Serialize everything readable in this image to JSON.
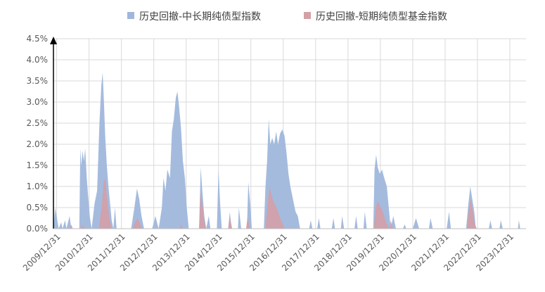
{
  "chart_data": {
    "type": "area",
    "title": "",
    "xlabel": "",
    "ylabel": "",
    "ylim": [
      0,
      4.5
    ],
    "yticks": [
      "0.0%",
      "0.5%",
      "1.0%",
      "1.5%",
      "2.0%",
      "2.5%",
      "3.0%",
      "3.5%",
      "4.0%",
      "4.5%"
    ],
    "xticks": [
      "2009/12/31",
      "2010/12/31",
      "2011/12/31",
      "2012/12/31",
      "2013/12/31",
      "2014/12/31",
      "2015/12/31",
      "2016/12/31",
      "2017/12/31",
      "2018/12/31",
      "2019/12/31",
      "2020/12/31",
      "2021/12/31",
      "2022/12/31",
      "2023/12/31"
    ],
    "x_range": [
      2009.9,
      2024.5
    ],
    "grid": "vertical-and-horizontal",
    "legend_position": "top",
    "series": [
      {
        "name": "历史回撤-中长期纯债型指数",
        "color": "#9fb7dc",
        "points": [
          [
            2009.9,
            0.0
          ],
          [
            2009.95,
            0.5
          ],
          [
            2010.02,
            0.2
          ],
          [
            2010.06,
            0.0
          ],
          [
            2010.14,
            0.15
          ],
          [
            2010.18,
            0.0
          ],
          [
            2010.26,
            0.2
          ],
          [
            2010.3,
            0.0
          ],
          [
            2010.4,
            0.3
          ],
          [
            2010.45,
            0.0
          ],
          [
            2010.7,
            0.0
          ],
          [
            2010.73,
            1.9
          ],
          [
            2010.76,
            1.5
          ],
          [
            2010.8,
            1.85
          ],
          [
            2010.84,
            1.6
          ],
          [
            2010.88,
            1.9
          ],
          [
            2010.93,
            1.2
          ],
          [
            2010.97,
            0.8
          ],
          [
            2011.02,
            0.3
          ],
          [
            2011.08,
            0.0
          ],
          [
            2011.17,
            0.6
          ],
          [
            2011.25,
            0.9
          ],
          [
            2011.32,
            2.5
          ],
          [
            2011.38,
            3.4
          ],
          [
            2011.42,
            3.7
          ],
          [
            2011.46,
            3.0
          ],
          [
            2011.5,
            2.2
          ],
          [
            2011.55,
            1.5
          ],
          [
            2011.6,
            1.0
          ],
          [
            2011.65,
            0.6
          ],
          [
            2011.7,
            0.2
          ],
          [
            2011.75,
            0.0
          ],
          [
            2011.8,
            0.5
          ],
          [
            2011.85,
            0.0
          ],
          [
            2012.3,
            0.0
          ],
          [
            2012.4,
            0.5
          ],
          [
            2012.48,
            0.95
          ],
          [
            2012.55,
            0.7
          ],
          [
            2012.62,
            0.3
          ],
          [
            2012.7,
            0.0
          ],
          [
            2012.95,
            0.0
          ],
          [
            2013.05,
            0.3
          ],
          [
            2013.15,
            0.0
          ],
          [
            2013.25,
            0.5
          ],
          [
            2013.3,
            1.2
          ],
          [
            2013.36,
            0.9
          ],
          [
            2013.42,
            1.4
          ],
          [
            2013.5,
            1.2
          ],
          [
            2013.56,
            2.3
          ],
          [
            2013.62,
            2.6
          ],
          [
            2013.68,
            3.1
          ],
          [
            2013.73,
            3.25
          ],
          [
            2013.78,
            2.9
          ],
          [
            2013.84,
            2.4
          ],
          [
            2013.9,
            1.6
          ],
          [
            2013.96,
            1.2
          ],
          [
            2014.02,
            0.5
          ],
          [
            2014.08,
            0.0
          ],
          [
            2014.4,
            0.0
          ],
          [
            2014.45,
            1.45
          ],
          [
            2014.5,
            0.9
          ],
          [
            2014.56,
            0.3
          ],
          [
            2014.62,
            0.0
          ],
          [
            2014.7,
            0.3
          ],
          [
            2014.75,
            0.0
          ],
          [
            2014.95,
            0.0
          ],
          [
            2015.0,
            1.4
          ],
          [
            2015.05,
            0.6
          ],
          [
            2015.1,
            0.0
          ],
          [
            2015.3,
            0.0
          ],
          [
            2015.35,
            0.4
          ],
          [
            2015.4,
            0.0
          ],
          [
            2015.6,
            0.0
          ],
          [
            2015.63,
            0.5
          ],
          [
            2015.7,
            0.0
          ],
          [
            2015.88,
            0.0
          ],
          [
            2015.92,
            1.1
          ],
          [
            2015.98,
            0.6
          ],
          [
            2016.03,
            0.0
          ],
          [
            2016.4,
            0.0
          ],
          [
            2016.45,
            1.0
          ],
          [
            2016.5,
            1.6
          ],
          [
            2016.55,
            2.6
          ],
          [
            2016.6,
            2.0
          ],
          [
            2016.66,
            2.15
          ],
          [
            2016.72,
            2.0
          ],
          [
            2016.78,
            2.3
          ],
          [
            2016.84,
            2.0
          ],
          [
            2016.9,
            2.25
          ],
          [
            2016.97,
            2.35
          ],
          [
            2017.04,
            2.2
          ],
          [
            2017.1,
            1.8
          ],
          [
            2017.16,
            1.3
          ],
          [
            2017.22,
            1.0
          ],
          [
            2017.3,
            0.7
          ],
          [
            2017.38,
            0.4
          ],
          [
            2017.45,
            0.3
          ],
          [
            2017.52,
            0.0
          ],
          [
            2017.8,
            0.0
          ],
          [
            2017.85,
            0.2
          ],
          [
            2017.9,
            0.0
          ],
          [
            2018.05,
            0.0
          ],
          [
            2018.1,
            0.25
          ],
          [
            2018.15,
            0.0
          ],
          [
            2018.5,
            0.0
          ],
          [
            2018.55,
            0.25
          ],
          [
            2018.6,
            0.0
          ],
          [
            2018.78,
            0.0
          ],
          [
            2018.82,
            0.3
          ],
          [
            2018.88,
            0.0
          ],
          [
            2019.2,
            0.0
          ],
          [
            2019.25,
            0.3
          ],
          [
            2019.3,
            0.0
          ],
          [
            2019.48,
            0.0
          ],
          [
            2019.52,
            0.4
          ],
          [
            2019.58,
            0.0
          ],
          [
            2019.78,
            0.0
          ],
          [
            2019.82,
            1.4
          ],
          [
            2019.87,
            1.75
          ],
          [
            2019.92,
            1.45
          ],
          [
            2019.98,
            1.3
          ],
          [
            2020.05,
            1.4
          ],
          [
            2020.12,
            1.2
          ],
          [
            2020.2,
            1.0
          ],
          [
            2020.26,
            0.5
          ],
          [
            2020.32,
            0.0
          ],
          [
            2020.4,
            0.3
          ],
          [
            2020.48,
            0.0
          ],
          [
            2020.7,
            0.0
          ],
          [
            2020.75,
            0.1
          ],
          [
            2020.8,
            0.0
          ],
          [
            2021.0,
            0.0
          ],
          [
            2021.1,
            0.25
          ],
          [
            2021.2,
            0.0
          ],
          [
            2021.5,
            0.0
          ],
          [
            2021.55,
            0.25
          ],
          [
            2021.62,
            0.0
          ],
          [
            2022.05,
            0.0
          ],
          [
            2022.12,
            0.4
          ],
          [
            2022.18,
            0.0
          ],
          [
            2022.65,
            0.0
          ],
          [
            2022.72,
            0.6
          ],
          [
            2022.78,
            1.0
          ],
          [
            2022.84,
            0.7
          ],
          [
            2022.9,
            0.4
          ],
          [
            2022.95,
            0.0
          ],
          [
            2023.35,
            0.0
          ],
          [
            2023.4,
            0.2
          ],
          [
            2023.45,
            0.0
          ],
          [
            2023.68,
            0.0
          ],
          [
            2023.72,
            0.2
          ],
          [
            2023.78,
            0.0
          ],
          [
            2024.25,
            0.0
          ],
          [
            2024.28,
            0.2
          ],
          [
            2024.32,
            0.0
          ],
          [
            2024.5,
            0.0
          ]
        ]
      },
      {
        "name": "历史回撤-短期纯债型基金指数",
        "color": "#d4a0a7",
        "points": [
          [
            2009.9,
            0.0
          ],
          [
            2010.4,
            0.0
          ],
          [
            2010.45,
            0.1
          ],
          [
            2010.5,
            0.0
          ],
          [
            2010.75,
            0.0
          ],
          [
            2010.8,
            0.1
          ],
          [
            2010.86,
            0.0
          ],
          [
            2011.3,
            0.0
          ],
          [
            2011.35,
            0.3
          ],
          [
            2011.4,
            0.6
          ],
          [
            2011.45,
            1.1
          ],
          [
            2011.5,
            1.2
          ],
          [
            2011.56,
            0.7
          ],
          [
            2011.62,
            0.3
          ],
          [
            2011.7,
            0.0
          ],
          [
            2012.35,
            0.0
          ],
          [
            2012.42,
            0.15
          ],
          [
            2012.5,
            0.25
          ],
          [
            2012.58,
            0.1
          ],
          [
            2012.65,
            0.0
          ],
          [
            2013.8,
            0.0
          ],
          [
            2013.85,
            0.1
          ],
          [
            2013.9,
            0.0
          ],
          [
            2014.4,
            0.0
          ],
          [
            2014.45,
            0.85
          ],
          [
            2014.5,
            0.6
          ],
          [
            2014.56,
            0.2
          ],
          [
            2014.62,
            0.0
          ],
          [
            2015.3,
            0.0
          ],
          [
            2015.35,
            0.3
          ],
          [
            2015.42,
            0.0
          ],
          [
            2015.85,
            0.0
          ],
          [
            2015.9,
            0.3
          ],
          [
            2015.96,
            0.0
          ],
          [
            2016.45,
            0.0
          ],
          [
            2016.52,
            0.6
          ],
          [
            2016.58,
            1.0
          ],
          [
            2016.65,
            0.75
          ],
          [
            2016.72,
            0.6
          ],
          [
            2016.8,
            0.5
          ],
          [
            2016.88,
            0.3
          ],
          [
            2016.96,
            0.15
          ],
          [
            2017.05,
            0.0
          ],
          [
            2019.8,
            0.0
          ],
          [
            2019.86,
            0.5
          ],
          [
            2019.92,
            0.65
          ],
          [
            2019.98,
            0.55
          ],
          [
            2020.05,
            0.45
          ],
          [
            2020.12,
            0.3
          ],
          [
            2020.2,
            0.1
          ],
          [
            2020.28,
            0.0
          ],
          [
            2020.32,
            0.2
          ],
          [
            2020.38,
            0.0
          ],
          [
            2022.68,
            0.0
          ],
          [
            2022.74,
            0.5
          ],
          [
            2022.8,
            0.7
          ],
          [
            2022.86,
            0.4
          ],
          [
            2022.92,
            0.1
          ],
          [
            2022.98,
            0.0
          ],
          [
            2024.5,
            0.0
          ]
        ]
      }
    ]
  }
}
